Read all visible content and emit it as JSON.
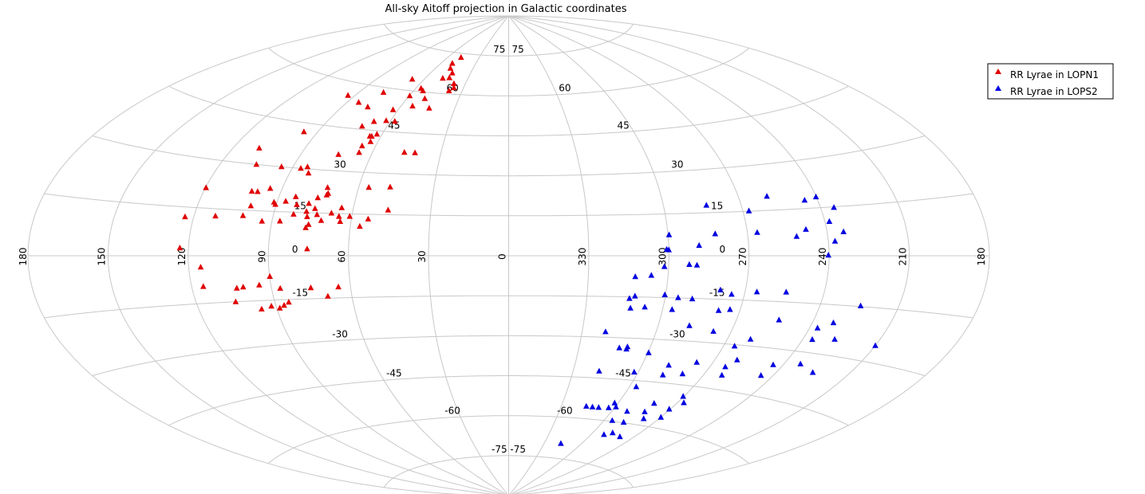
{
  "chart_data": {
    "type": "scatter",
    "title": "All-sky Aitoff projection in Galactic coordinates",
    "projection": "aitoff",
    "grid": true,
    "legend_position": "top-right",
    "longitude_ticks": [
      {
        "lon": 180,
        "label": "180"
      },
      {
        "lon": 210,
        "label": "210"
      },
      {
        "lon": 240,
        "label": "240"
      },
      {
        "lon": 270,
        "label": "270"
      },
      {
        "lon": 300,
        "label": "300"
      },
      {
        "lon": 330,
        "label": "330"
      },
      {
        "lon": 0,
        "label": "0"
      },
      {
        "lon": 30,
        "label": "30"
      },
      {
        "lon": 60,
        "label": "60"
      },
      {
        "lon": 90,
        "label": "90"
      },
      {
        "lon": 120,
        "label": "120"
      },
      {
        "lon": 150,
        "label": "150"
      },
      {
        "lon": -180,
        "label": "180"
      }
    ],
    "latitude_ticks": [
      75,
      60,
      45,
      30,
      15,
      0,
      -15,
      -30,
      -45,
      -60,
      -75
    ],
    "series": [
      {
        "name": "RR Lyrae in LOPN1",
        "color": "#e00000",
        "marker": "triangle",
        "points": [
          [
            47.7,
            73.5
          ],
          [
            50.5,
            71.1
          ],
          [
            48.4,
            69.3
          ],
          [
            44.0,
            67.7
          ],
          [
            43.6,
            65.9
          ],
          [
            48.0,
            65.5
          ],
          [
            37.8,
            63.9
          ],
          [
            36.3,
            62.4
          ],
          [
            38.3,
            61.2
          ],
          [
            56.7,
            61.2
          ],
          [
            54.3,
            60.4
          ],
          [
            67.9,
            64.0
          ],
          [
            49.8,
            57.7
          ],
          [
            59.7,
            58.2
          ],
          [
            76.5,
            58.3
          ],
          [
            93.8,
            55.6
          ],
          [
            84.0,
            53.9
          ],
          [
            77.0,
            52.8
          ],
          [
            44.1,
            54.4
          ],
          [
            53.8,
            54.7
          ],
          [
            62.7,
            52.8
          ],
          [
            67.8,
            48.1
          ],
          [
            57.7,
            48.8
          ],
          [
            62.2,
            48.8
          ],
          [
            71.8,
            46.1
          ],
          [
            96.2,
            42.1
          ],
          [
            63.3,
            41.0
          ],
          [
            64.2,
            42.9
          ],
          [
            62.4,
            43.8
          ],
          [
            65.1,
            42.9
          ],
          [
            66.0,
            39.3
          ],
          [
            109.2,
            35.2
          ],
          [
            41.4,
            37.9
          ],
          [
            46.1,
            37.9
          ],
          [
            65.7,
            36.9
          ],
          [
            74.1,
            35.7
          ],
          [
            84.1,
            30.7
          ],
          [
            86.5,
            30.0
          ],
          [
            94.7,
            30.0
          ],
          [
            105.4,
            30.0
          ],
          [
            82.4,
            28.6
          ],
          [
            47.5,
            25.1
          ],
          [
            56.0,
            24.7
          ],
          [
            72.3,
            24.0
          ],
          [
            94.7,
            22.6
          ],
          [
            119.8,
            21.3
          ],
          [
            71.7,
            21.4
          ],
          [
            71.3,
            22.0
          ],
          [
            74.8,
            20.3
          ],
          [
            83.5,
            20.3
          ],
          [
            101.4,
            21.3
          ],
          [
            99.1,
            21.3
          ],
          [
            77.6,
            18.2
          ],
          [
            86.8,
            18.6
          ],
          [
            64.5,
            17.1
          ],
          [
            46.5,
            16.7
          ],
          [
            82.1,
            17.6
          ],
          [
            91.2,
            18.1
          ],
          [
            90.4,
            17.4
          ],
          [
            99.6,
            16.5
          ],
          [
            74.7,
            16.5
          ],
          [
            53.6,
            13.3
          ],
          [
            77.7,
            15.4
          ],
          [
            68.0,
            15.1
          ],
          [
            60.8,
            14.1
          ],
          [
            82.4,
            14.3
          ],
          [
            73.4,
            14.4
          ],
          [
            77.0,
            13.6
          ],
          [
            64.9,
            14.0
          ],
          [
            101.5,
            13.2
          ],
          [
            64.1,
            12.2
          ],
          [
            111.9,
            12.7
          ],
          [
            87.0,
            11.8
          ],
          [
            71.4,
            12.4
          ],
          [
            56.4,
            10.6
          ],
          [
            76.8,
            9.8
          ],
          [
            75.9,
            10.9
          ],
          [
            93.8,
            11.6
          ],
          [
            123.3,
            12.0
          ],
          [
            75.5,
            2.4
          ],
          [
            123.2,
            2.4
          ],
          [
            115.5,
            -3.6
          ],
          [
            89.9,
            -7.0
          ],
          [
            115.6,
            -9.7
          ],
          [
            100.6,
            -10.3
          ],
          [
            75.1,
            -11.2
          ],
          [
            94.4,
            -9.8
          ],
          [
            86.7,
            -11.1
          ],
          [
            103.1,
            -10.6
          ],
          [
            64.6,
            -11.1
          ],
          [
            69.2,
            -14.3
          ],
          [
            104.9,
            -15.0
          ],
          [
            84.7,
            -15.9
          ],
          [
            86.8,
            -16.9
          ],
          [
            91.8,
            -17.0
          ],
          [
            88.8,
            -17.8
          ],
          [
            95.9,
            -17.8
          ]
        ]
      },
      {
        "name": "RR Lyrae in LOPS2",
        "color": "#0000e0",
        "marker": "triangle",
        "points": [
          [
            258.9,
            19.6
          ],
          [
            240.1,
            18.4
          ],
          [
            283.4,
            17.6
          ],
          [
            245.0,
            17.6
          ],
          [
            267.7,
            15.1
          ],
          [
            234.9,
            14.8
          ],
          [
            238.3,
            10.6
          ],
          [
            247.8,
            8.4
          ],
          [
            282.2,
            7.6
          ],
          [
            299.6,
            7.5
          ],
          [
            251.7,
            6.2
          ],
          [
            233.8,
            7.3
          ],
          [
            266.3,
            7.8
          ],
          [
            237.5,
            4.5
          ],
          [
            288.6,
            3.6
          ],
          [
            300.8,
            2.3
          ],
          [
            300.0,
            2.1
          ],
          [
            240.3,
            0.2
          ],
          [
            289.4,
            -3.3
          ],
          [
            292.3,
            -3.1
          ],
          [
            301.6,
            -3.9
          ],
          [
            306.3,
            -7.1
          ],
          [
            312.3,
            -7.6
          ],
          [
            254.4,
            -11.8
          ],
          [
            279.5,
            -11.8
          ],
          [
            265.5,
            -12.1
          ],
          [
            300.3,
            -14.0
          ],
          [
            274.9,
            -13.2
          ],
          [
            311.6,
            -14.7
          ],
          [
            224.5,
            -14.8
          ],
          [
            295.0,
            -14.9
          ],
          [
            289.5,
            -15.2
          ],
          [
            313.6,
            -15.6
          ],
          [
            307.1,
            -18.6
          ],
          [
            312.6,
            -19.1
          ],
          [
            296.3,
            -19.2
          ],
          [
            278.2,
            -18.9
          ],
          [
            273.9,
            -18.4
          ],
          [
            231.9,
            -20.4
          ],
          [
            253.4,
            -20.9
          ],
          [
            210.0,
            -25.4
          ],
          [
            236.9,
            -22.4
          ],
          [
            227.5,
            -25.2
          ],
          [
            287.6,
            -24.6
          ],
          [
            236.2,
            -26.0
          ],
          [
            277.1,
            -26.1
          ],
          [
            260.7,
            -27.8
          ],
          [
            320.5,
            -28.0
          ],
          [
            309.6,
            -33.2
          ],
          [
            233.3,
            -33.6
          ],
          [
            265.5,
            -30.5
          ],
          [
            260.6,
            -34.9
          ],
          [
            244.1,
            -35.0
          ],
          [
            299.7,
            -34.9
          ],
          [
            276.9,
            -37.0
          ],
          [
            263.4,
            -37.5
          ],
          [
            225.0,
            -35.4
          ],
          [
            312.9,
            -33.7
          ],
          [
            245.1,
            -38.7
          ],
          [
            288.1,
            -42.3
          ],
          [
            261.9,
            -40.3
          ],
          [
            288.2,
            -38.8
          ],
          [
            309.7,
            -34.0
          ],
          [
            301.8,
            -42.1
          ],
          [
            318.0,
            -42.5
          ],
          [
            279.6,
            -41.3
          ],
          [
            296.7,
            -47.2
          ],
          [
            270.4,
            -48.7
          ],
          [
            281.3,
            -52.2
          ],
          [
            291.5,
            -56.0
          ],
          [
            266.9,
            -50.7
          ],
          [
            270.6,
            -53.4
          ],
          [
            303.2,
            -55.4
          ],
          [
            299.5,
            -54.9
          ],
          [
            316.0,
            -55.5
          ],
          [
            278.3,
            -57.7
          ],
          [
            281.8,
            -55.4
          ],
          [
            308.8,
            -55.6
          ],
          [
            312.4,
            -55.6
          ],
          [
            279.1,
            -64.7
          ],
          [
            286.9,
            -63.8
          ],
          [
            269.9,
            -56.4
          ],
          [
            295.1,
            -59.7
          ],
          [
            287.4,
            -59.8
          ],
          [
            291.2,
            -64.8
          ],
          [
            316.2,
            -69.6
          ],
          [
            301.9,
            -53.5
          ]
        ]
      }
    ]
  }
}
